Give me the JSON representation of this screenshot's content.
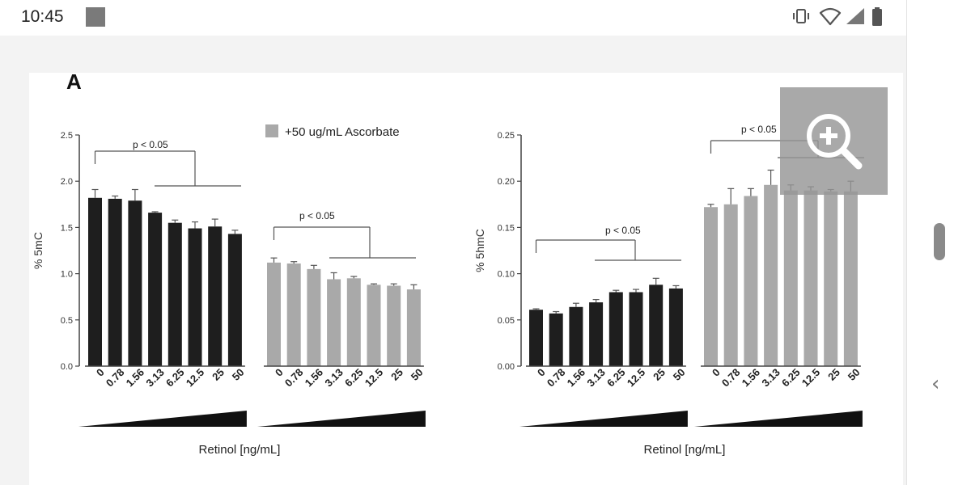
{
  "status_bar": {
    "time": "10:45"
  },
  "figure": {
    "panel_label": "A"
  },
  "chart_data": [
    {
      "type": "bar",
      "ylabel": "% 5mC",
      "xlabel": "Retinol [ng/mL]",
      "ylim": [
        0,
        2.5
      ],
      "yticks": [
        "0.0",
        "0.5",
        "1.0",
        "1.5",
        "2.0",
        "2.5"
      ],
      "legend": "+50 ug/mL Ascorbate",
      "categories": [
        "0",
        "0.78",
        "1.56",
        "3.13",
        "6.25",
        "12.5",
        "25",
        "50"
      ],
      "series": [
        {
          "values": [
            1.82,
            1.81,
            1.79,
            1.66,
            1.55,
            1.49,
            1.51,
            1.43
          ],
          "errors": [
            0.09,
            0.03,
            0.12,
            0.01,
            0.03,
            0.07,
            0.08,
            0.04
          ],
          "color": "#1e1e1e"
        },
        {
          "name": "+50 ug/mL Ascorbate",
          "values": [
            1.12,
            1.11,
            1.05,
            0.94,
            0.95,
            0.88,
            0.87,
            0.83
          ],
          "errors": [
            0.05,
            0.02,
            0.04,
            0.07,
            0.02,
            0.01,
            0.02,
            0.05
          ],
          "color": "#a9a9a9"
        }
      ],
      "annotations": [
        "p < 0.05",
        "p < 0.05"
      ]
    },
    {
      "type": "bar",
      "ylabel": "% 5hmC",
      "xlabel": "Retinol [ng/mL]",
      "ylim": [
        0,
        0.25
      ],
      "yticks": [
        "0.00",
        "0.05",
        "0.10",
        "0.15",
        "0.20",
        "0.25"
      ],
      "categories": [
        "0",
        "0.78",
        "1.56",
        "3.13",
        "6.25",
        "12.5",
        "25",
        "50"
      ],
      "series": [
        {
          "values": [
            0.061,
            0.057,
            0.064,
            0.069,
            0.08,
            0.08,
            0.088,
            0.084
          ],
          "errors": [
            0.001,
            0.002,
            0.004,
            0.003,
            0.002,
            0.003,
            0.007,
            0.003
          ],
          "color": "#1e1e1e"
        },
        {
          "values": [
            0.172,
            0.175,
            0.184,
            0.196,
            0.19,
            0.19,
            0.189,
            0.189
          ],
          "errors": [
            0.003,
            0.017,
            0.008,
            0.016,
            0.006,
            0.004,
            0.002,
            0.011
          ],
          "color": "#a9a9a9"
        }
      ],
      "annotations": [
        "p < 0.05",
        "p < 0.05"
      ]
    }
  ]
}
